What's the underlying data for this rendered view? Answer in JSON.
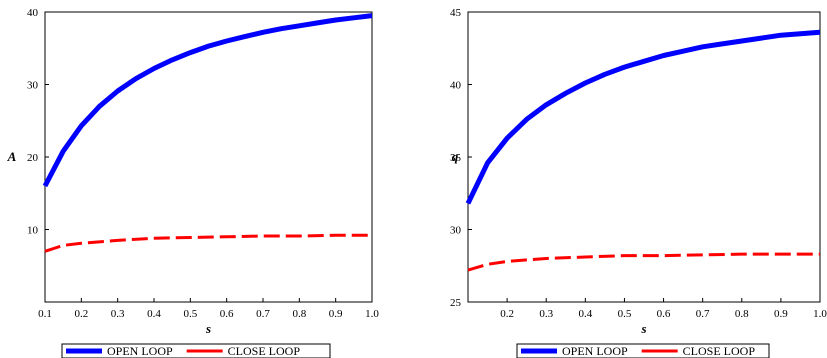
{
  "chart_data": [
    {
      "type": "line",
      "title": "",
      "xlabel": "s",
      "ylabel": "A",
      "xlim": [
        0.1,
        1.0
      ],
      "ylim": [
        0,
        40
      ],
      "xticks": [
        "0.1",
        "0.2",
        "0.3",
        "0.4",
        "0.5",
        "0.6",
        "0.7",
        "0.8",
        "0.9",
        "1.0"
      ],
      "yticks": [
        "10",
        "20",
        "30",
        "40"
      ],
      "grid": false,
      "legend_position": "bottom",
      "series": [
        {
          "name": "OPEN LOOP",
          "color": "#0000ff",
          "style": "solid",
          "x": [
            0.1,
            0.15,
            0.2,
            0.25,
            0.3,
            0.35,
            0.4,
            0.45,
            0.5,
            0.55,
            0.6,
            0.65,
            0.7,
            0.75,
            0.8,
            0.85,
            0.9,
            0.95,
            1.0
          ],
          "y": [
            16.0,
            20.8,
            24.3,
            27.0,
            29.1,
            30.8,
            32.2,
            33.4,
            34.4,
            35.3,
            36.0,
            36.6,
            37.2,
            37.7,
            38.1,
            38.5,
            38.9,
            39.2,
            39.5
          ]
        },
        {
          "name": "CLOSE LOOP",
          "color": "#ff0000",
          "style": "dashed",
          "x": [
            0.1,
            0.15,
            0.2,
            0.3,
            0.4,
            0.5,
            0.6,
            0.7,
            0.8,
            0.9,
            1.0
          ],
          "y": [
            7.0,
            7.8,
            8.1,
            8.5,
            8.8,
            8.9,
            9.0,
            9.1,
            9.1,
            9.2,
            9.2
          ]
        }
      ]
    },
    {
      "type": "line",
      "title": "",
      "xlabel": "s",
      "ylabel": "q",
      "xlim": [
        0.1,
        1.0
      ],
      "ylim": [
        25,
        45
      ],
      "xticks": [
        "0.2",
        "0.3",
        "0.4",
        "0.5",
        "0.6",
        "0.7",
        "0.8",
        "0.9",
        "1.0"
      ],
      "yticks": [
        "25",
        "30",
        "35",
        "40",
        "45"
      ],
      "grid": false,
      "legend_position": "bottom",
      "series": [
        {
          "name": "OPEN LOOP",
          "color": "#0000ff",
          "style": "solid",
          "x": [
            0.1,
            0.15,
            0.2,
            0.25,
            0.3,
            0.35,
            0.4,
            0.45,
            0.5,
            0.55,
            0.6,
            0.65,
            0.7,
            0.75,
            0.8,
            0.85,
            0.9,
            0.95,
            1.0
          ],
          "y": [
            31.8,
            34.6,
            36.3,
            37.6,
            38.6,
            39.4,
            40.1,
            40.7,
            41.2,
            41.6,
            42.0,
            42.3,
            42.6,
            42.8,
            43.0,
            43.2,
            43.4,
            43.5,
            43.6
          ]
        },
        {
          "name": "CLOSE LOOP",
          "color": "#ff0000",
          "style": "dashed",
          "x": [
            0.1,
            0.15,
            0.2,
            0.3,
            0.4,
            0.5,
            0.6,
            0.7,
            0.8,
            0.9,
            1.0
          ],
          "y": [
            27.2,
            27.6,
            27.8,
            28.0,
            28.1,
            28.2,
            28.2,
            28.25,
            28.3,
            28.3,
            28.3
          ]
        }
      ]
    }
  ]
}
